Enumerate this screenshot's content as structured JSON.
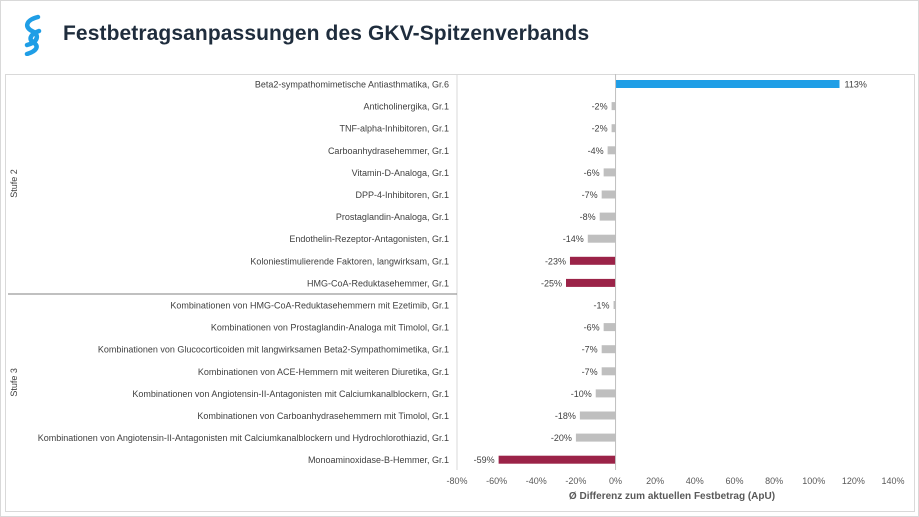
{
  "header": {
    "title": "Festbetragsanpassungen des GKV-Spitzenverbands"
  },
  "colors": {
    "positive": "#1f9ee6",
    "negative_strong": "#9b2348",
    "negative_mild": "#bfbfbf",
    "title": "#1f2d3d",
    "logo": "#1f9ee6"
  },
  "chart_data": {
    "type": "bar",
    "orientation": "horizontal",
    "xlabel": "Ø Differenz zum aktuellen Festbetrag (ApU)",
    "xlim": [
      -80,
      140
    ],
    "xticks": [
      "-80%",
      "-60%",
      "-40%",
      "-20%",
      "0%",
      "20%",
      "40%",
      "60%",
      "80%",
      "100%",
      "120%",
      "140%"
    ],
    "groups": [
      {
        "name": "Stufe 2",
        "items": [
          {
            "label": "Beta2-sympathomimetische Antiasthmatika, Gr.6",
            "value": 113,
            "value_label": "113%",
            "color": "positive"
          },
          {
            "label": "Anticholinergika, Gr.1",
            "value": -2,
            "value_label": "-2%",
            "color": "negative_mild"
          },
          {
            "label": "TNF-alpha-Inhibitoren, Gr.1",
            "value": -2,
            "value_label": "-2%",
            "color": "negative_mild"
          },
          {
            "label": "Carboanhydrasehemmer, Gr.1",
            "value": -4,
            "value_label": "-4%",
            "color": "negative_mild"
          },
          {
            "label": "Vitamin-D-Analoga, Gr.1",
            "value": -6,
            "value_label": "-6%",
            "color": "negative_mild"
          },
          {
            "label": "DPP-4-Inhibitoren, Gr.1",
            "value": -7,
            "value_label": "-7%",
            "color": "negative_mild"
          },
          {
            "label": "Prostaglandin-Analoga, Gr.1",
            "value": -8,
            "value_label": "-8%",
            "color": "negative_mild"
          },
          {
            "label": "Endothelin-Rezeptor-Antagonisten, Gr.1",
            "value": -14,
            "value_label": "-14%",
            "color": "negative_mild"
          },
          {
            "label": "Koloniestimulierende Faktoren, langwirksam, Gr.1",
            "value": -23,
            "value_label": "-23%",
            "color": "negative_strong"
          },
          {
            "label": "HMG-CoA-Reduktasehemmer, Gr.1",
            "value": -25,
            "value_label": "-25%",
            "color": "negative_strong"
          }
        ]
      },
      {
        "name": "Stufe 3",
        "items": [
          {
            "label": "Kombinationen von HMG-CoA-Reduktasehemmern mit Ezetimib, Gr.1",
            "value": -1,
            "value_label": "-1%",
            "color": "negative_mild"
          },
          {
            "label": "Kombinationen von Prostaglandin-Analoga mit Timolol, Gr.1",
            "value": -6,
            "value_label": "-6%",
            "color": "negative_mild"
          },
          {
            "label": "Kombinationen von Glucocorticoiden mit langwirksamen Beta2-Sympathomimetika, Gr.1",
            "value": -7,
            "value_label": "-7%",
            "color": "negative_mild"
          },
          {
            "label": "Kombinationen von ACE-Hemmern mit weiteren Diuretika, Gr.1",
            "value": -7,
            "value_label": "-7%",
            "color": "negative_mild"
          },
          {
            "label": "Kombinationen von Angiotensin-II-Antagonisten mit Calciumkanalblockern, Gr.1",
            "value": -10,
            "value_label": "-10%",
            "color": "negative_mild"
          },
          {
            "label": "Kombinationen von Carboanhydrasehemmern mit Timolol, Gr.1",
            "value": -18,
            "value_label": "-18%",
            "color": "negative_mild"
          },
          {
            "label": "Kombinationen von Angiotensin-II-Antagonisten mit Calciumkanalblockern und Hydrochlorothiazid, Gr.1",
            "value": -20,
            "value_label": "-20%",
            "color": "negative_mild"
          },
          {
            "label": "Monoaminoxidase-B-Hemmer, Gr.1",
            "value": -59,
            "value_label": "-59%",
            "color": "negative_strong"
          }
        ]
      }
    ]
  }
}
